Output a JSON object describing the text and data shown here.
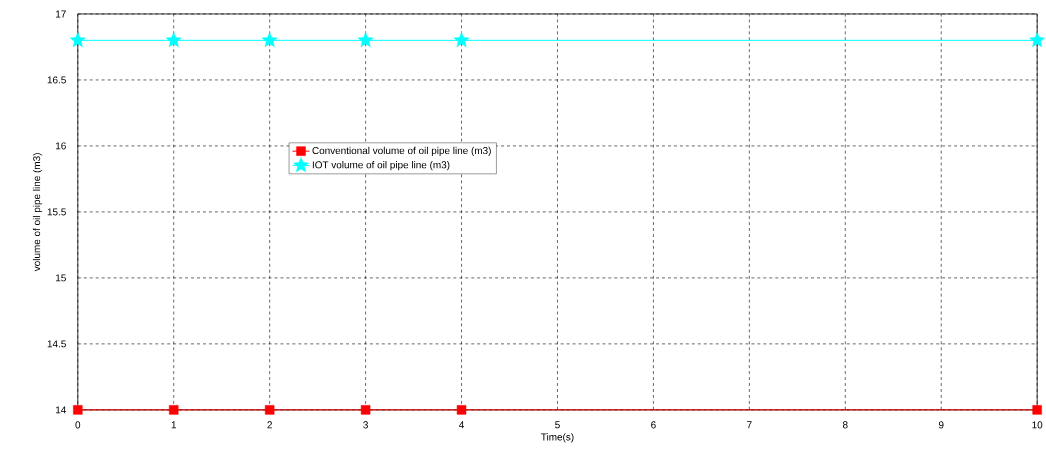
{
  "chart_data": {
    "type": "line",
    "xlabel": "Time(s)",
    "ylabel": "volume  of oil pipe line (m3)",
    "x": [
      0,
      1,
      2,
      3,
      4,
      10
    ],
    "series": [
      {
        "name": "Conventional volume  of oil pipe line (m3)",
        "color": "#ff0000",
        "marker": "square",
        "values": [
          14,
          14,
          14,
          14,
          14,
          14
        ]
      },
      {
        "name": "IOT volume of oil pipe line (m3)",
        "color": "#00ffff",
        "marker": "star",
        "values": [
          16.8,
          16.8,
          16.8,
          16.8,
          16.8,
          16.8
        ]
      }
    ],
    "xlim": [
      0,
      10
    ],
    "ylim": [
      14,
      17
    ],
    "xticks": [
      0,
      1,
      2,
      3,
      4,
      5,
      6,
      7,
      8,
      9,
      10
    ],
    "yticks": [
      14,
      14.5,
      15,
      15.5,
      16,
      16.5,
      17
    ],
    "grid": true,
    "legend": "top left",
    "line_style": "solid"
  }
}
